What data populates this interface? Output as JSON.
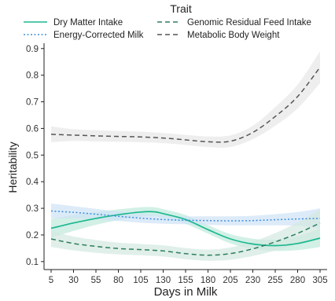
{
  "chart_data": {
    "type": "line",
    "xlabel": "Days in Milk",
    "ylabel": "Heritability",
    "x_ticks": [
      5,
      30,
      55,
      80,
      105,
      130,
      155,
      180,
      205,
      230,
      255,
      280,
      305
    ],
    "y_ticks": [
      0.1,
      0.2,
      0.3,
      0.4,
      0.5,
      0.6,
      0.7,
      0.8,
      0.9
    ],
    "xlim": [
      5,
      305
    ],
    "ylim": [
      0.07,
      0.92
    ],
    "grid": false,
    "legend_title": "Trait",
    "legend_position": "top",
    "series": [
      {
        "name": "Dry Matter Intake",
        "color": "#1db88f",
        "linestyle": "solid",
        "x": [
          5,
          30,
          55,
          80,
          105,
          120,
          130,
          155,
          180,
          205,
          230,
          255,
          280,
          305
        ],
        "y": [
          0.225,
          0.245,
          0.262,
          0.276,
          0.286,
          0.287,
          0.28,
          0.258,
          0.22,
          0.185,
          0.166,
          0.16,
          0.168,
          0.188
        ],
        "ci_lower": [
          0.19,
          0.215,
          0.238,
          0.256,
          0.268,
          0.27,
          0.265,
          0.242,
          0.205,
          0.168,
          0.148,
          0.14,
          0.143,
          0.155
        ],
        "ci_upper": [
          0.26,
          0.275,
          0.286,
          0.296,
          0.304,
          0.304,
          0.297,
          0.275,
          0.237,
          0.203,
          0.186,
          0.182,
          0.195,
          0.225
        ]
      },
      {
        "name": "Energy-Corrected Milk",
        "color": "#3e8ede",
        "linestyle": "dotted",
        "x": [
          5,
          30,
          55,
          80,
          105,
          130,
          155,
          180,
          205,
          230,
          255,
          280,
          305
        ],
        "y": [
          0.29,
          0.285,
          0.278,
          0.27,
          0.263,
          0.258,
          0.255,
          0.254,
          0.253,
          0.254,
          0.257,
          0.26,
          0.262
        ],
        "ci_lower": [
          0.262,
          0.262,
          0.258,
          0.252,
          0.246,
          0.242,
          0.24,
          0.238,
          0.236,
          0.236,
          0.236,
          0.234,
          0.225
        ],
        "ci_upper": [
          0.318,
          0.308,
          0.298,
          0.288,
          0.28,
          0.274,
          0.27,
          0.27,
          0.27,
          0.272,
          0.278,
          0.286,
          0.3
        ]
      },
      {
        "name": "Genomic Residual Feed Intake",
        "color": "#2e7f5e",
        "linestyle": "dashed",
        "x": [
          5,
          30,
          55,
          80,
          105,
          130,
          155,
          180,
          205,
          230,
          255,
          280,
          305
        ],
        "y": [
          0.185,
          0.168,
          0.157,
          0.149,
          0.145,
          0.14,
          0.13,
          0.124,
          0.13,
          0.148,
          0.174,
          0.206,
          0.245
        ],
        "ci_lower": [
          0.155,
          0.142,
          0.133,
          0.127,
          0.124,
          0.119,
          0.109,
          0.103,
          0.107,
          0.121,
          0.141,
          0.165,
          0.195
        ],
        "ci_upper": [
          0.215,
          0.194,
          0.181,
          0.171,
          0.166,
          0.161,
          0.151,
          0.145,
          0.153,
          0.175,
          0.207,
          0.247,
          0.295
        ]
      },
      {
        "name": "Metabolic Body Weight",
        "color": "#555555",
        "linestyle": "dashed",
        "x": [
          5,
          30,
          55,
          80,
          105,
          130,
          155,
          180,
          205,
          230,
          255,
          280,
          305
        ],
        "y": [
          0.578,
          0.575,
          0.572,
          0.57,
          0.568,
          0.564,
          0.557,
          0.55,
          0.552,
          0.585,
          0.645,
          0.72,
          0.83
        ],
        "ci_lower": [
          0.548,
          0.553,
          0.551,
          0.55,
          0.548,
          0.545,
          0.538,
          0.53,
          0.53,
          0.56,
          0.61,
          0.675,
          0.77
        ],
        "ci_upper": [
          0.608,
          0.597,
          0.593,
          0.59,
          0.588,
          0.583,
          0.576,
          0.57,
          0.574,
          0.61,
          0.68,
          0.765,
          0.89
        ]
      }
    ]
  }
}
